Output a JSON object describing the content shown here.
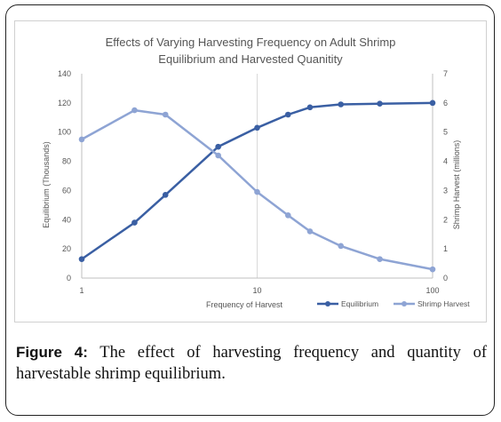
{
  "chart_data": {
    "type": "line",
    "title_lines": [
      "Effects of Varying Harvesting Frequency on Adult Shrimp",
      "Equilibrium and Harvested Quanitity"
    ],
    "xlabel": "Frequency of Harvest",
    "ylabel_left": "Equilibrium (Thousands)",
    "ylabel_right": "Shrimp Harvest (millions)",
    "x_scale": "log",
    "xlim": [
      1,
      100
    ],
    "x_ticks": [
      1,
      10,
      100
    ],
    "x_tick_labels": [
      "1",
      "10",
      "100"
    ],
    "ylim_left": [
      0,
      140
    ],
    "y_ticks_left": [
      "0",
      "20",
      "40",
      "60",
      "80",
      "100",
      "120",
      "140"
    ],
    "ylim_right": [
      0,
      7
    ],
    "y_ticks_right": [
      "0",
      "1",
      "2",
      "3",
      "4",
      "5",
      "6",
      "7"
    ],
    "grid": "vertical at decades",
    "legend_position": "bottom-right",
    "series": [
      {
        "name": "Equilibrium",
        "axis": "left",
        "color": "#3a5fa3",
        "x": [
          1,
          2,
          3,
          6,
          10,
          15,
          20,
          30,
          50,
          100
        ],
        "values": [
          13,
          38,
          57,
          90,
          103,
          112,
          117,
          119,
          119.5,
          120
        ]
      },
      {
        "name": "Shrimp Harvest",
        "axis": "right",
        "color": "#8ea4d4",
        "x": [
          1,
          2,
          3,
          6,
          10,
          15,
          20,
          30,
          50,
          100
        ],
        "values": [
          4.75,
          5.75,
          5.6,
          4.2,
          2.95,
          2.15,
          1.6,
          1.1,
          0.65,
          0.3
        ]
      }
    ]
  },
  "caption": {
    "label": "Figure 4:",
    "text": " The effect of harvesting frequency and quantity of harvestable shrimp equilibrium."
  }
}
